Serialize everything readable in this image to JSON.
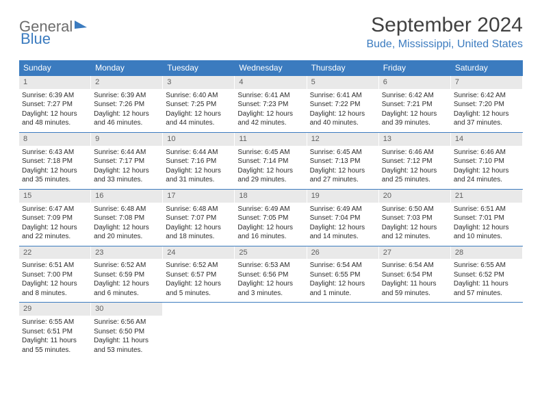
{
  "logo": {
    "part1": "General",
    "part2": "Blue"
  },
  "title": "September 2024",
  "location": "Bude, Mississippi, United States",
  "colors": {
    "header_bg": "#3b7bbf",
    "header_fg": "#ffffff",
    "daynum_bg": "#e9e9e9",
    "week_border": "#3b7bbf",
    "text": "#2b2b2b",
    "logo_gray": "#6c6c6c",
    "logo_blue": "#3b7bbf",
    "title_color": "#414141"
  },
  "day_names": [
    "Sunday",
    "Monday",
    "Tuesday",
    "Wednesday",
    "Thursday",
    "Friday",
    "Saturday"
  ],
  "weeks": [
    [
      {
        "n": "1",
        "sr": "6:39 AM",
        "ss": "7:27 PM",
        "dl": "12 hours and 48 minutes."
      },
      {
        "n": "2",
        "sr": "6:39 AM",
        "ss": "7:26 PM",
        "dl": "12 hours and 46 minutes."
      },
      {
        "n": "3",
        "sr": "6:40 AM",
        "ss": "7:25 PM",
        "dl": "12 hours and 44 minutes."
      },
      {
        "n": "4",
        "sr": "6:41 AM",
        "ss": "7:23 PM",
        "dl": "12 hours and 42 minutes."
      },
      {
        "n": "5",
        "sr": "6:41 AM",
        "ss": "7:22 PM",
        "dl": "12 hours and 40 minutes."
      },
      {
        "n": "6",
        "sr": "6:42 AM",
        "ss": "7:21 PM",
        "dl": "12 hours and 39 minutes."
      },
      {
        "n": "7",
        "sr": "6:42 AM",
        "ss": "7:20 PM",
        "dl": "12 hours and 37 minutes."
      }
    ],
    [
      {
        "n": "8",
        "sr": "6:43 AM",
        "ss": "7:18 PM",
        "dl": "12 hours and 35 minutes."
      },
      {
        "n": "9",
        "sr": "6:44 AM",
        "ss": "7:17 PM",
        "dl": "12 hours and 33 minutes."
      },
      {
        "n": "10",
        "sr": "6:44 AM",
        "ss": "7:16 PM",
        "dl": "12 hours and 31 minutes."
      },
      {
        "n": "11",
        "sr": "6:45 AM",
        "ss": "7:14 PM",
        "dl": "12 hours and 29 minutes."
      },
      {
        "n": "12",
        "sr": "6:45 AM",
        "ss": "7:13 PM",
        "dl": "12 hours and 27 minutes."
      },
      {
        "n": "13",
        "sr": "6:46 AM",
        "ss": "7:12 PM",
        "dl": "12 hours and 25 minutes."
      },
      {
        "n": "14",
        "sr": "6:46 AM",
        "ss": "7:10 PM",
        "dl": "12 hours and 24 minutes."
      }
    ],
    [
      {
        "n": "15",
        "sr": "6:47 AM",
        "ss": "7:09 PM",
        "dl": "12 hours and 22 minutes."
      },
      {
        "n": "16",
        "sr": "6:48 AM",
        "ss": "7:08 PM",
        "dl": "12 hours and 20 minutes."
      },
      {
        "n": "17",
        "sr": "6:48 AM",
        "ss": "7:07 PM",
        "dl": "12 hours and 18 minutes."
      },
      {
        "n": "18",
        "sr": "6:49 AM",
        "ss": "7:05 PM",
        "dl": "12 hours and 16 minutes."
      },
      {
        "n": "19",
        "sr": "6:49 AM",
        "ss": "7:04 PM",
        "dl": "12 hours and 14 minutes."
      },
      {
        "n": "20",
        "sr": "6:50 AM",
        "ss": "7:03 PM",
        "dl": "12 hours and 12 minutes."
      },
      {
        "n": "21",
        "sr": "6:51 AM",
        "ss": "7:01 PM",
        "dl": "12 hours and 10 minutes."
      }
    ],
    [
      {
        "n": "22",
        "sr": "6:51 AM",
        "ss": "7:00 PM",
        "dl": "12 hours and 8 minutes."
      },
      {
        "n": "23",
        "sr": "6:52 AM",
        "ss": "6:59 PM",
        "dl": "12 hours and 6 minutes."
      },
      {
        "n": "24",
        "sr": "6:52 AM",
        "ss": "6:57 PM",
        "dl": "12 hours and 5 minutes."
      },
      {
        "n": "25",
        "sr": "6:53 AM",
        "ss": "6:56 PM",
        "dl": "12 hours and 3 minutes."
      },
      {
        "n": "26",
        "sr": "6:54 AM",
        "ss": "6:55 PM",
        "dl": "12 hours and 1 minute."
      },
      {
        "n": "27",
        "sr": "6:54 AM",
        "ss": "6:54 PM",
        "dl": "11 hours and 59 minutes."
      },
      {
        "n": "28",
        "sr": "6:55 AM",
        "ss": "6:52 PM",
        "dl": "11 hours and 57 minutes."
      }
    ],
    [
      {
        "n": "29",
        "sr": "6:55 AM",
        "ss": "6:51 PM",
        "dl": "11 hours and 55 minutes."
      },
      {
        "n": "30",
        "sr": "6:56 AM",
        "ss": "6:50 PM",
        "dl": "11 hours and 53 minutes."
      },
      null,
      null,
      null,
      null,
      null
    ]
  ],
  "labels": {
    "sunrise": "Sunrise:",
    "sunset": "Sunset:",
    "daylight": "Daylight:"
  }
}
